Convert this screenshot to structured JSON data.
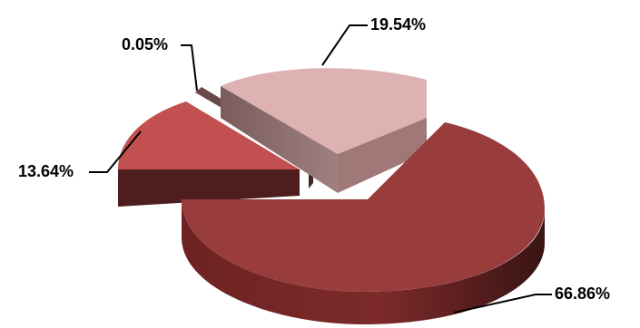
{
  "chart_data": {
    "type": "pie",
    "title": "",
    "slices": [
      {
        "label": "66.86%",
        "value": 66.86,
        "color": "#983c3c"
      },
      {
        "label": "19.54%",
        "value": 19.54,
        "color": "#deb2b2"
      },
      {
        "label": "0.05%",
        "value": 0.05,
        "color": "#6a4848"
      },
      {
        "label": "13.64%",
        "value": 13.64,
        "color": "#c25050"
      }
    ],
    "legend": "none",
    "grid": false
  }
}
